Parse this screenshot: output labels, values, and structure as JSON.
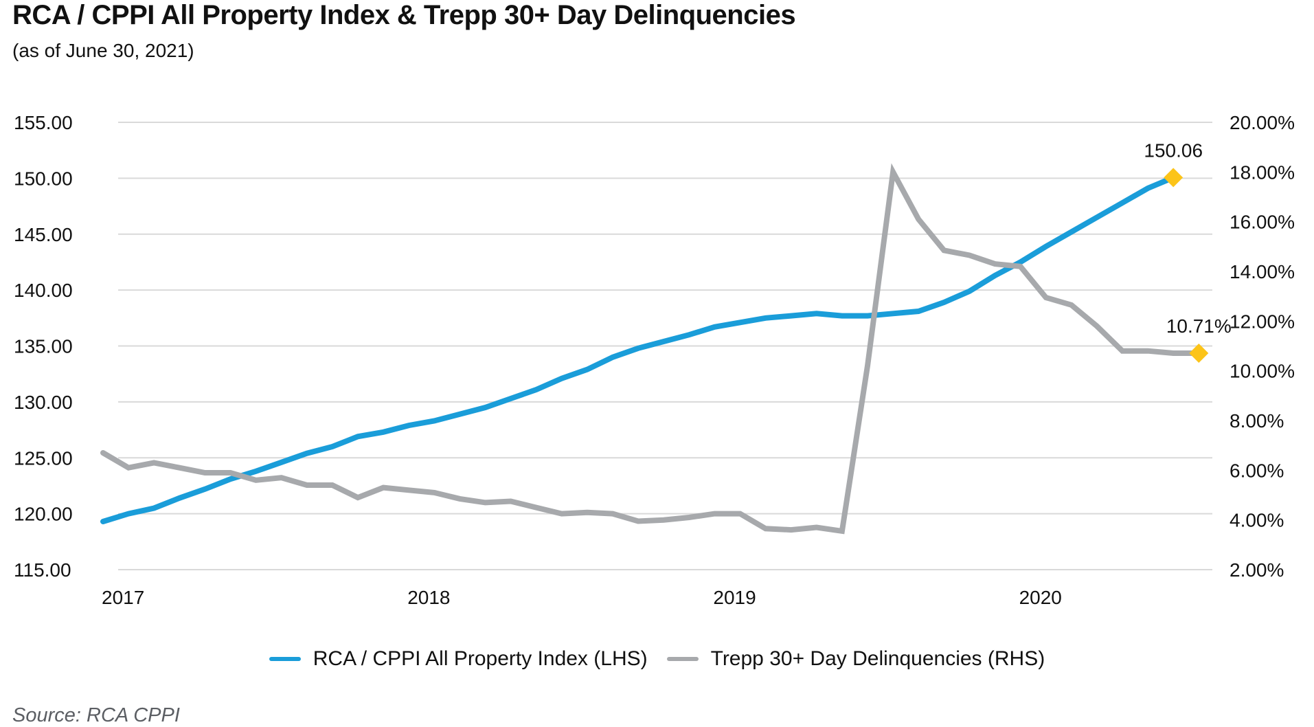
{
  "header": {
    "title": "RCA / CPPI All Property Index & Trepp 30+ Day Delinquencies",
    "subtitle": "(as of June 30, 2021)"
  },
  "footer": {
    "source": "Source: RCA CPPI"
  },
  "colors": {
    "cppi": "#1a9dd9",
    "delinquency": "#a7a9ac",
    "marker": "#fcc419",
    "grid": "#d9d9d9"
  },
  "chart_data": {
    "type": "line",
    "title": "RCA / CPPI All Property Index & Trepp 30+ Day Delinquencies",
    "subtitle": "(as of June 30, 2021)",
    "xlabel": "",
    "ylabel_left": "",
    "ylabel_right": "",
    "x_tick_labels": [
      "2017",
      "2018",
      "2019",
      "2020"
    ],
    "x_tick_index": [
      0,
      12,
      24,
      36
    ],
    "y_left": {
      "min": 115,
      "max": 155,
      "step": 5,
      "tick_labels": [
        "155.00",
        "150.00",
        "145.00",
        "140.00",
        "135.00",
        "130.00",
        "125.00",
        "120.00",
        "115.00"
      ]
    },
    "y_right": {
      "min": 2,
      "max": 20,
      "step": 2,
      "tick_labels": [
        "20.00%",
        "18.00%",
        "16.00%",
        "14.00%",
        "12.00%",
        "10.00%",
        "8.00%",
        "6.00%",
        "4.00%",
        "2.00%"
      ]
    },
    "grid": true,
    "legend_position": "bottom-center",
    "series": [
      {
        "name": "RCA / CPPI All Property Index (LHS)",
        "axis": "left",
        "color": "#1a9dd9",
        "values": [
          119.3,
          120.0,
          120.5,
          121.4,
          122.2,
          123.1,
          123.8,
          124.6,
          125.4,
          126.0,
          126.9,
          127.3,
          127.9,
          128.3,
          128.9,
          129.5,
          130.3,
          131.1,
          132.1,
          132.9,
          134.0,
          134.8,
          135.4,
          136.0,
          136.7,
          137.1,
          137.5,
          137.7,
          137.9,
          137.7,
          137.7,
          137.9,
          138.1,
          138.9,
          139.9,
          141.3,
          142.5,
          143.9,
          145.2,
          146.5,
          147.8,
          149.1,
          150.06
        ],
        "end_label": "150.06"
      },
      {
        "name": "Trepp 30+ Day Delinquencies (RHS)",
        "axis": "right",
        "color": "#a7a9ac",
        "values": [
          6.7,
          6.1,
          6.3,
          6.1,
          5.9,
          5.9,
          5.6,
          5.7,
          5.4,
          5.4,
          4.9,
          5.3,
          5.2,
          5.1,
          4.85,
          4.7,
          4.75,
          4.5,
          4.25,
          4.3,
          4.25,
          3.95,
          4.0,
          4.1,
          4.25,
          4.25,
          3.65,
          3.6,
          3.7,
          3.55,
          10.2,
          18.0,
          16.1,
          14.85,
          14.65,
          14.3,
          14.2,
          12.95,
          12.65,
          11.8,
          10.8,
          10.8,
          10.71,
          10.71
        ],
        "end_label": "10.71%"
      }
    ]
  }
}
